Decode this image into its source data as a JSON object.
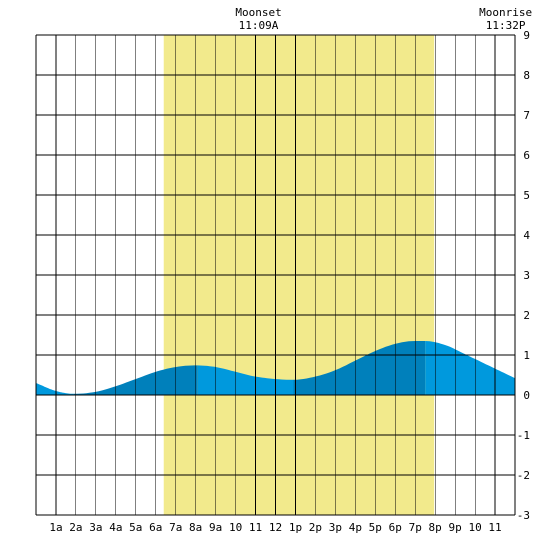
{
  "chart_data": {
    "type": "area",
    "x_unit": "hour",
    "xlim": [
      0,
      24
    ],
    "ylim": [
      -3,
      9
    ],
    "y_ticks": [
      -3,
      -2,
      -1,
      0,
      1,
      2,
      3,
      4,
      5,
      6,
      7,
      8,
      9
    ],
    "x_tick_labels": [
      {
        "hour": 1,
        "label": "1a"
      },
      {
        "hour": 2,
        "label": "2a"
      },
      {
        "hour": 3,
        "label": "3a"
      },
      {
        "hour": 4,
        "label": "4a"
      },
      {
        "hour": 5,
        "label": "5a"
      },
      {
        "hour": 6,
        "label": "6a"
      },
      {
        "hour": 7,
        "label": "7a"
      },
      {
        "hour": 8,
        "label": "8a"
      },
      {
        "hour": 9,
        "label": "9a"
      },
      {
        "hour": 10,
        "label": "10"
      },
      {
        "hour": 11,
        "label": "11"
      },
      {
        "hour": 12,
        "label": "12"
      },
      {
        "hour": 13,
        "label": "1p"
      },
      {
        "hour": 14,
        "label": "2p"
      },
      {
        "hour": 15,
        "label": "3p"
      },
      {
        "hour": 16,
        "label": "4p"
      },
      {
        "hour": 17,
        "label": "5p"
      },
      {
        "hour": 18,
        "label": "6p"
      },
      {
        "hour": 19,
        "label": "7p"
      },
      {
        "hour": 20,
        "label": "8p"
      },
      {
        "hour": 21,
        "label": "9p"
      },
      {
        "hour": 22,
        "label": "10"
      },
      {
        "hour": 23,
        "label": "11"
      }
    ],
    "grid": true,
    "daylight": {
      "start_hour": 6.4,
      "end_hour": 19.95,
      "color": "#f2ea8c"
    },
    "tide_series": {
      "hours": [
        0,
        1,
        1.9,
        3,
        4,
        5,
        6,
        7,
        8,
        9,
        10,
        11,
        12.9,
        14,
        15,
        16,
        17,
        18,
        19,
        19.5,
        20.5,
        21.5,
        22.5,
        24
      ],
      "heights": [
        0.3,
        0.1,
        0.03,
        0.08,
        0.22,
        0.4,
        0.58,
        0.7,
        0.74,
        0.7,
        0.58,
        0.46,
        0.38,
        0.46,
        0.62,
        0.86,
        1.1,
        1.28,
        1.35,
        1.35,
        1.25,
        1.02,
        0.78,
        0.42
      ]
    },
    "tide_extremes_hours": [
      1.9,
      8.1,
      12.9,
      19.5
    ],
    "colors": {
      "tide_light": "#0099dd",
      "tide_dark": "#0080bb",
      "grid": "#000000"
    },
    "events": [
      {
        "name": "Moonset",
        "time": "11:09A",
        "hour": 11.15
      },
      {
        "name": "Moonrise",
        "time": "11:32P",
        "hour": 23.53
      }
    ]
  }
}
